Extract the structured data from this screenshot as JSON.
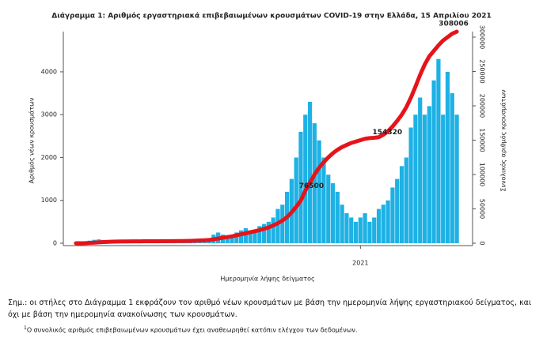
{
  "chart_data": {
    "type": "combo",
    "title": "Διάγραμμα 1: Αριθμός εργαστηριακά επιβεβαιωμένων κρουσμάτων COVID-19 στην Ελλάδα, 15 Απριλίου 2021",
    "y_label": "Αριθμός νέων κρουσμάτων",
    "y2_label": "Συνολικός αριθμός κρουσμάτων",
    "x_label": "Ημερομηνία λήψης δείγματος",
    "note": "Σημ.: οι στήλες στο Διάγραμμα 1 εκφράζουν τον αριθμό νέων κρουσμάτων με βάση την ημερομηνία λήψης εργαστηριακού δείγματος, και όχι με βάση την ημερομηνία ανακοίνωσης των κρουσμάτων.",
    "footnote_mark": "1",
    "footnote": "Ο συνολικός αριθμός επιβεβαιωμένων κρουσμάτων έχει αναθεωρηθεί κατόπιν ελέγχου των δεδομένων.",
    "categories": [
      null,
      null,
      null,
      null,
      null,
      null,
      null,
      null,
      null,
      null,
      null,
      null,
      null,
      null,
      null,
      null,
      null,
      null,
      null,
      null,
      null,
      null,
      null,
      null,
      null,
      null,
      null,
      null,
      null,
      null,
      null,
      null,
      null,
      null,
      null,
      null,
      null,
      null,
      null,
      null,
      null,
      null,
      null,
      null,
      null,
      null,
      null,
      null,
      null,
      null,
      null,
      null,
      null,
      null,
      null,
      null,
      null,
      null,
      null,
      null,
      null,
      null,
      "2021",
      null,
      null,
      null,
      null,
      null,
      null,
      null,
      null,
      null,
      null,
      null,
      null,
      null,
      null,
      null,
      null,
      null,
      null,
      null,
      null,
      null
    ],
    "series": [
      {
        "color": "#1eb1e4",
        "values": [
          3,
          10,
          40,
          60,
          80,
          90,
          70,
          60,
          50,
          40,
          20,
          15,
          10,
          10,
          10,
          10,
          8,
          5,
          10,
          15,
          10,
          15,
          20,
          25,
          30,
          40,
          50,
          60,
          80,
          120,
          200,
          250,
          200,
          180,
          200,
          250,
          300,
          350,
          300,
          280,
          400,
          450,
          500,
          600,
          800,
          900,
          1200,
          1500,
          2000,
          2600,
          3000,
          3300,
          2800,
          2400,
          2000,
          1600,
          1400,
          1200,
          900,
          700,
          600,
          500,
          600,
          700,
          500,
          600,
          800,
          900,
          1000,
          1300,
          1500,
          1800,
          2000,
          2700,
          3000,
          3400,
          3000,
          3200,
          3800,
          4300,
          3000,
          4000,
          3500,
          3000
        ]
      },
      {
        "color": "#e5141b",
        "axis": "y2",
        "values": [
          0,
          50,
          200,
          500,
          900,
          1300,
          1700,
          2000,
          2300,
          2500,
          2600,
          2650,
          2700,
          2750,
          2800,
          2850,
          2880,
          2900,
          2920,
          2950,
          3000,
          3050,
          3100,
          3200,
          3300,
          3500,
          3700,
          4000,
          4300,
          4800,
          5600,
          6800,
          8000,
          9000,
          10000,
          11500,
          13000,
          14500,
          16000,
          17500,
          19000,
          21000,
          23000,
          26000,
          29000,
          33000,
          38000,
          45000,
          53000,
          62000,
          76500,
          88000,
          100000,
          110000,
          118000,
          125000,
          131000,
          136000,
          140000,
          143000,
          146000,
          148000,
          150000,
          152000,
          153000,
          153500,
          154320,
          158000,
          163000,
          170000,
          178000,
          187000,
          198000,
          212000,
          228000,
          245000,
          260000,
          272000,
          280000,
          288000,
          295000,
          300000,
          305000,
          308006
        ],
        "value_labels": [
          null,
          null,
          null,
          null,
          null,
          null,
          null,
          null,
          null,
          null,
          null,
          null,
          null,
          null,
          null,
          null,
          null,
          null,
          null,
          null,
          null,
          null,
          null,
          null,
          null,
          null,
          null,
          null,
          null,
          null,
          null,
          null,
          null,
          null,
          null,
          null,
          null,
          null,
          null,
          null,
          null,
          null,
          null,
          null,
          null,
          null,
          null,
          null,
          null,
          null,
          "76500",
          null,
          null,
          null,
          null,
          null,
          null,
          null,
          null,
          null,
          null,
          null,
          null,
          null,
          null,
          null,
          "154320",
          null,
          null,
          null,
          null,
          null,
          null,
          null,
          null,
          null,
          null,
          null,
          null,
          null,
          null,
          null,
          null,
          "308006"
        ]
      }
    ],
    "ylim": [
      0,
      4810
    ],
    "yticks": [
      0,
      1000,
      2000,
      3000,
      4000
    ],
    "y2lim": [
      0,
      300000
    ],
    "y2ticks": [
      0,
      50000,
      100000,
      150000,
      200000,
      250000,
      300000
    ]
  }
}
